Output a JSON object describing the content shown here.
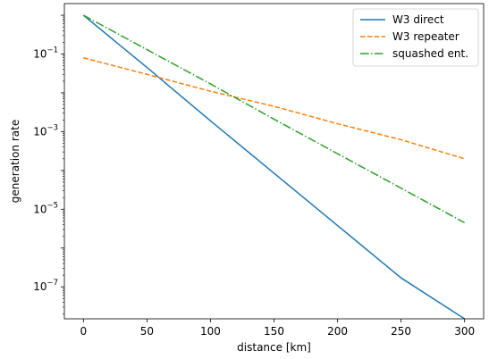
{
  "chart_data": {
    "type": "line",
    "title": "",
    "xlabel": "distance [km]",
    "ylabel": "generation rate",
    "xlim": [
      -15,
      315
    ],
    "ylim": [
      1.5e-08,
      2.0
    ],
    "yscale": "log",
    "grid": false,
    "legend_position": "top-right",
    "x_ticks": [
      0,
      50,
      100,
      150,
      200,
      250,
      300
    ],
    "x_tick_labels": [
      "0",
      "50",
      "100",
      "150",
      "200",
      "250",
      "300"
    ],
    "y_ticks": [
      0.1,
      0.001,
      1e-05,
      1e-07
    ],
    "y_tick_labels": [
      {
        "base": "10",
        "exp": "−1"
      },
      {
        "base": "10",
        "exp": "−3"
      },
      {
        "base": "10",
        "exp": "−5"
      },
      {
        "base": "10",
        "exp": "−7"
      }
    ],
    "series": [
      {
        "name": "W3 direct",
        "color": "#1f77b4",
        "dash": "solid",
        "x": [
          0,
          50,
          100,
          150,
          200,
          250,
          300
        ],
        "y": [
          1.0,
          0.045,
          0.0019,
          8.5e-05,
          3.8e-06,
          1.7e-07,
          1.5e-08
        ]
      },
      {
        "name": "W3 repeater",
        "color": "#ff7f0e",
        "dash": "dashed",
        "x": [
          0,
          50,
          100,
          150,
          200,
          250,
          300
        ],
        "y": [
          0.08,
          0.03,
          0.011,
          0.0045,
          0.0016,
          0.00062,
          0.0002
        ]
      },
      {
        "name": "squashed ent.",
        "color": "#2ca02c",
        "dash": "dashdot",
        "x": [
          0,
          50,
          100,
          150,
          200,
          250,
          300
        ],
        "y": [
          1.0,
          0.13,
          0.017,
          0.0021,
          0.00027,
          3.5e-05,
          4.5e-06
        ]
      }
    ]
  }
}
